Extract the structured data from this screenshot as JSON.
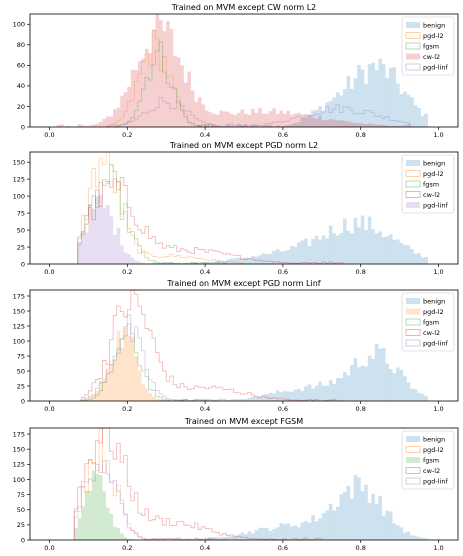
{
  "colors": {
    "benign": "#1f77b4",
    "pgd-l2": "#ff7f0e",
    "fgsm": "#2ca02c",
    "cw-l2": "#d62728",
    "pgd-linf": "#9467bd"
  },
  "chart_data": [
    {
      "type": "histogram",
      "title": "Trained on MVM except CW norm L2",
      "xlim": [
        -0.05,
        1.05
      ],
      "ylim": [
        0,
        110
      ],
      "xticks": [
        "0.0",
        "0.2",
        "0.4",
        "0.6",
        "0.8",
        "1.0"
      ],
      "yticks": [
        "0",
        "20",
        "40",
        "60",
        "80",
        "100"
      ],
      "legend": "upper right",
      "legend_entries": [
        "benign",
        "pgd-l2",
        "fgsm",
        "cw-l2",
        "pgd-linf"
      ],
      "filled_series": "cw-l2",
      "series": [
        {
          "name": "benign",
          "style": "filled",
          "peaks": [
            {
              "center": 0.84,
              "width": 0.07,
              "height": 58
            },
            {
              "center": 0.71,
              "width": 0.05,
              "height": 12
            }
          ],
          "range": [
            0.38,
            0.97
          ]
        },
        {
          "name": "pgd-l2",
          "style": "outline",
          "peaks": [
            {
              "center": 0.27,
              "width": 0.04,
              "height": 78
            }
          ],
          "range": [
            0.15,
            0.42
          ]
        },
        {
          "name": "fgsm",
          "style": "outline",
          "peaks": [
            {
              "center": 0.28,
              "width": 0.035,
              "height": 70
            }
          ],
          "range": [
            0.16,
            0.42
          ]
        },
        {
          "name": "cw-l2",
          "style": "filled",
          "peaks": [
            {
              "center": 0.28,
              "width": 0.06,
              "height": 92
            },
            {
              "center": 0.55,
              "width": 0.15,
              "height": 15
            }
          ],
          "range": [
            0.02,
            0.93
          ]
        },
        {
          "name": "pgd-linf",
          "style": "outline",
          "peaks": [
            {
              "center": 0.3,
              "width": 0.05,
              "height": 25
            },
            {
              "center": 0.75,
              "width": 0.1,
              "height": 18
            }
          ],
          "range": [
            0.15,
            0.93
          ]
        }
      ]
    },
    {
      "type": "histogram",
      "title": "Trained on MVM except PGD norm L2",
      "xlim": [
        -0.05,
        1.05
      ],
      "ylim": [
        0,
        165
      ],
      "xticks": [
        "0.0",
        "0.2",
        "0.4",
        "0.6",
        "0.8",
        "1.0"
      ],
      "yticks": [
        "0",
        "25",
        "50",
        "75",
        "100",
        "125",
        "150"
      ],
      "legend": "upper right",
      "legend_entries": [
        "benign",
        "pgd-l2",
        "fgsm",
        "cw-l2",
        "pgd-linf"
      ],
      "filled_series": "pgd-linf",
      "series": [
        {
          "name": "benign",
          "style": "filled",
          "peaks": [
            {
              "center": 0.8,
              "width": 0.09,
              "height": 55
            },
            {
              "center": 0.62,
              "width": 0.12,
              "height": 15
            }
          ],
          "range": [
            0.3,
            0.97
          ]
        },
        {
          "name": "pgd-l2",
          "style": "outline",
          "peaks": [
            {
              "center": 0.14,
              "width": 0.04,
              "height": 150
            },
            {
              "center": 0.3,
              "width": 0.1,
              "height": 12
            }
          ],
          "range": [
            0.07,
            0.5
          ]
        },
        {
          "name": "fgsm",
          "style": "outline",
          "peaks": [
            {
              "center": 0.15,
              "width": 0.045,
              "height": 120
            }
          ],
          "range": [
            0.07,
            0.45
          ]
        },
        {
          "name": "cw-l2",
          "style": "outline",
          "peaks": [
            {
              "center": 0.16,
              "width": 0.06,
              "height": 105
            },
            {
              "center": 0.35,
              "width": 0.12,
              "height": 20
            }
          ],
          "range": [
            0.07,
            0.75
          ]
        },
        {
          "name": "pgd-linf",
          "style": "filled",
          "peaks": [
            {
              "center": 0.13,
              "width": 0.04,
              "height": 88
            }
          ],
          "range": [
            0.07,
            0.4
          ]
        }
      ]
    },
    {
      "type": "histogram",
      "title": "Trained on MVM except PGD norm Linf",
      "xlim": [
        -0.05,
        1.05
      ],
      "ylim": [
        0,
        185
      ],
      "xticks": [
        "0.0",
        "0.2",
        "0.4",
        "0.6",
        "0.8",
        "1.0"
      ],
      "yticks": [
        "0",
        "25",
        "50",
        "75",
        "100",
        "125",
        "150",
        "175"
      ],
      "legend": "upper right",
      "legend_entries": [
        "benign",
        "pgd-l2",
        "fgsm",
        "cw-l2",
        "pgd-linf"
      ],
      "filled_series": "pgd-l2",
      "series": [
        {
          "name": "benign",
          "style": "filled",
          "peaks": [
            {
              "center": 0.84,
              "width": 0.06,
              "height": 72
            },
            {
              "center": 0.68,
              "width": 0.1,
              "height": 22
            }
          ],
          "range": [
            0.28,
            0.97
          ]
        },
        {
          "name": "pgd-l2",
          "style": "filled",
          "peaks": [
            {
              "center": 0.19,
              "width": 0.035,
              "height": 110
            }
          ],
          "range": [
            0.08,
            0.42
          ]
        },
        {
          "name": "fgsm",
          "style": "outline",
          "peaks": [
            {
              "center": 0.2,
              "width": 0.035,
              "height": 105
            }
          ],
          "range": [
            0.08,
            0.42
          ]
        },
        {
          "name": "cw-l2",
          "style": "outline",
          "peaks": [
            {
              "center": 0.21,
              "width": 0.05,
              "height": 165
            },
            {
              "center": 0.4,
              "width": 0.1,
              "height": 22
            }
          ],
          "range": [
            0.08,
            0.75
          ]
        },
        {
          "name": "pgd-linf",
          "style": "outline",
          "peaks": [
            {
              "center": 0.2,
              "width": 0.04,
              "height": 118
            }
          ],
          "range": [
            0.08,
            0.45
          ]
        }
      ]
    },
    {
      "type": "histogram",
      "title": "Trained on MVM except FGSM",
      "xlim": [
        -0.05,
        1.05
      ],
      "ylim": [
        0,
        185
      ],
      "xticks": [
        "0.0",
        "0.2",
        "0.4",
        "0.6",
        "0.8",
        "1.0"
      ],
      "yticks": [
        "0",
        "25",
        "50",
        "75",
        "100",
        "125",
        "150",
        "175"
      ],
      "legend": "upper right",
      "legend_entries": [
        "benign",
        "pgd-l2",
        "fgsm",
        "cw-l2",
        "pgd-linf"
      ],
      "filled_series": "fgsm",
      "series": [
        {
          "name": "benign",
          "style": "filled",
          "peaks": [
            {
              "center": 0.8,
              "width": 0.06,
              "height": 78
            },
            {
              "center": 0.65,
              "width": 0.12,
              "height": 25
            }
          ],
          "range": [
            0.3,
            0.97
          ]
        },
        {
          "name": "pgd-l2",
          "style": "outline",
          "peaks": [
            {
              "center": 0.13,
              "width": 0.04,
              "height": 150
            }
          ],
          "range": [
            0.06,
            0.45
          ]
        },
        {
          "name": "fgsm",
          "style": "filled",
          "peaks": [
            {
              "center": 0.12,
              "width": 0.03,
              "height": 103
            }
          ],
          "range": [
            0.06,
            0.3
          ]
        },
        {
          "name": "cw-l2",
          "style": "outline",
          "peaks": [
            {
              "center": 0.14,
              "width": 0.05,
              "height": 175
            },
            {
              "center": 0.3,
              "width": 0.1,
              "height": 30
            }
          ],
          "range": [
            0.06,
            0.7
          ]
        },
        {
          "name": "pgd-linf",
          "style": "outline",
          "peaks": [
            {
              "center": 0.13,
              "width": 0.04,
              "height": 140
            }
          ],
          "range": [
            0.06,
            0.45
          ]
        }
      ]
    }
  ]
}
